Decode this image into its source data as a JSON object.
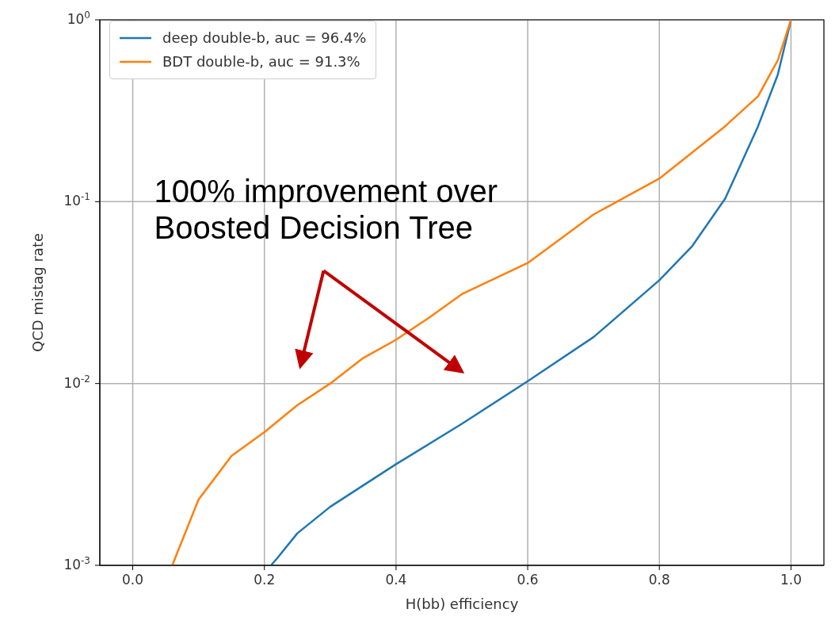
{
  "chart_data": {
    "type": "line",
    "xlabel": "H(bb) efficiency",
    "ylabel": "QCD mistag rate",
    "log": "y",
    "grid": true,
    "legend": "top left",
    "marker": "none",
    "line_style": "solid",
    "xlim": [
      -0.05,
      1.05
    ],
    "xticks": [
      {
        "value": 0,
        "label": "0.0"
      },
      0.2,
      0.4,
      0.6,
      0.8,
      {
        "value": 1,
        "label": "1.0"
      }
    ],
    "ylim": [
      0.001,
      1
    ],
    "yticks": [
      {
        "value": 0.001,
        "label": "10$^{-3}$"
      },
      {
        "value": 0.01,
        "label": "10$^{-2}$"
      },
      {
        "value": 0.1,
        "label": "10$^{-1}$"
      },
      {
        "value": 1,
        "label": "10$^{0}$"
      }
    ],
    "series": [
      {
        "name": "deep double-b, auc = 96.4%",
        "color": "#1f77b4",
        "x": [
          0.21,
          0.22,
          0.25,
          0.3,
          0.4,
          0.5,
          0.6,
          0.7,
          0.8,
          0.85,
          0.9,
          0.95,
          0.98,
          1.0
        ],
        "values": [
          0.001,
          0.0011,
          0.0015,
          0.0021,
          0.0036,
          0.006,
          0.0103,
          0.018,
          0.037,
          0.057,
          0.104,
          0.26,
          0.5,
          1
        ]
      },
      {
        "name": "BDT double-b, auc = 91.3%",
        "color": "#ff7f0e",
        "x": [
          0.06,
          0.1,
          0.15,
          0.2,
          0.25,
          0.3,
          0.35,
          0.4,
          0.45,
          0.5,
          0.6,
          0.7,
          0.8,
          0.9,
          0.95,
          0.98,
          1.0
        ],
        "values": [
          0.001,
          0.0023,
          0.004,
          0.0054,
          0.0076,
          0.01,
          0.0138,
          0.0174,
          0.023,
          0.031,
          0.046,
          0.085,
          0.134,
          0.26,
          0.38,
          0.6,
          1
        ]
      }
    ],
    "annotations": [
      "100% improvement over\nBoosted Decision Tree"
    ]
  }
}
